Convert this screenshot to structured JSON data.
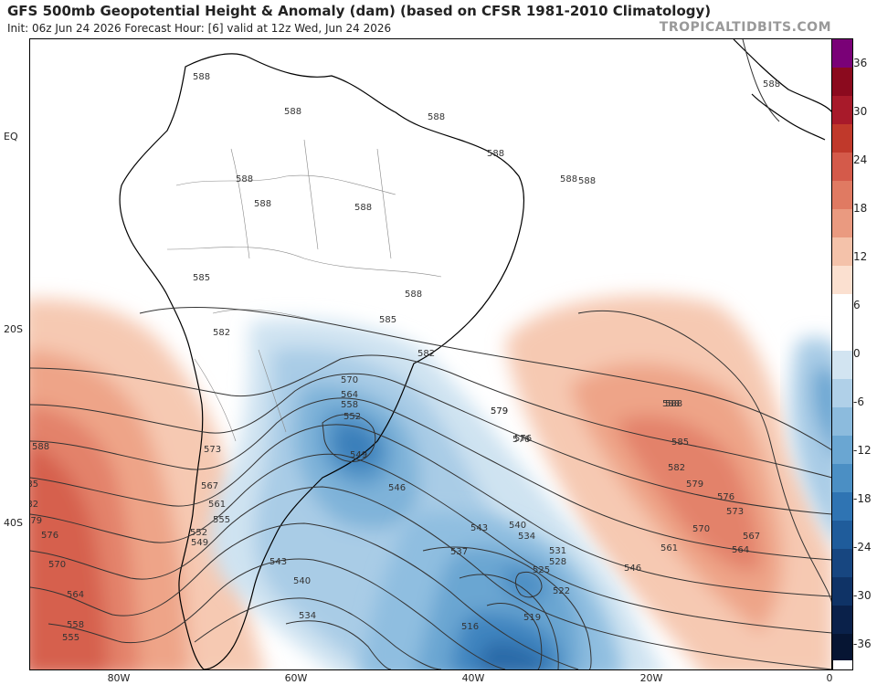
{
  "header": {
    "title": "GFS 500mb Geopotential Height & Anomaly (dam) (based on CFSR 1981-2010 Climatology)",
    "subtitle": "Init: 06z Jun 24 2026   Forecast Hour: [6]   valid at 12z Wed, Jun 24 2026",
    "credit": "TROPICALTIDBITS.COM"
  },
  "axes": {
    "lat_labels": [
      "EQ",
      "20S",
      "40S"
    ],
    "lon_labels": [
      "80W",
      "60W",
      "40W",
      "20W",
      "0"
    ]
  },
  "colorbar": {
    "labels": [
      "36",
      "30",
      "24",
      "18",
      "12",
      "6",
      "0",
      "-6",
      "-12",
      "-18",
      "-24",
      "-30",
      "-36"
    ],
    "colors": [
      "#7a0177",
      "#8b0a1e",
      "#a81a2a",
      "#c0392b",
      "#d45a4a",
      "#e07a62",
      "#ea9a80",
      "#f4c2aa",
      "#fbe0d0",
      "#ffffff",
      "#ffffff",
      "#d2e4f1",
      "#b0d0e8",
      "#8cbbdd",
      "#6aa6d2",
      "#4b8fc4",
      "#2f74b3",
      "#1f5c9b",
      "#174680",
      "#0f3366",
      "#0a214a",
      "#061533"
    ]
  },
  "contour_labels": [
    "588",
    "588",
    "588",
    "588",
    "588",
    "588",
    "588",
    "588",
    "588",
    "585",
    "582",
    "588",
    "585",
    "582",
    "579",
    "576",
    "570",
    "564",
    "558",
    "552",
    "549",
    "573",
    "567",
    "561",
    "555",
    "552",
    "549",
    "543",
    "540",
    "534",
    "546",
    "543",
    "540",
    "537",
    "534",
    "531",
    "528",
    "525",
    "522",
    "519",
    "516",
    "546",
    "579",
    "576",
    "588",
    "585",
    "582",
    "579",
    "576",
    "573",
    "570",
    "567",
    "564",
    "561",
    "588",
    "585",
    "582",
    "579",
    "576",
    "570",
    "564",
    "558",
    "555",
    "588",
    "588"
  ],
  "anomaly_fields": [
    {
      "kind": "positive",
      "region": "west-pacific"
    },
    {
      "kind": "positive",
      "region": "south-atlantic"
    },
    {
      "kind": "negative",
      "region": "southern-brazil-trough"
    },
    {
      "kind": "negative",
      "region": "south-atlantic-low"
    },
    {
      "kind": "negative",
      "region": "east-edge"
    }
  ]
}
